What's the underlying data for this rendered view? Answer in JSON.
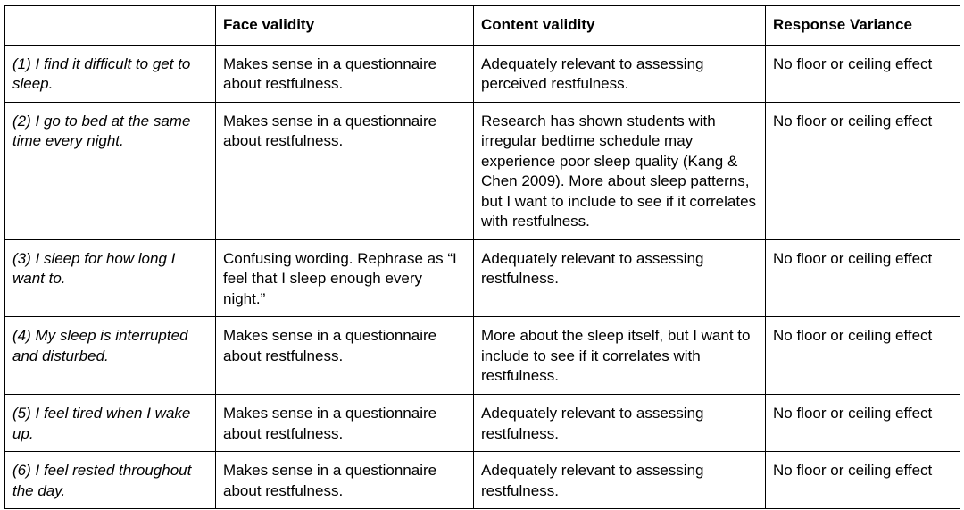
{
  "table": {
    "headers": [
      "",
      "Face validity",
      "Content validity",
      "Response Variance"
    ],
    "rows": [
      {
        "item": "(1) I find it difficult to get to sleep.",
        "face": "Makes sense in a questionnaire about restfulness.",
        "content": "Adequately relevant to assessing perceived restfulness.",
        "variance": "No floor or ceiling effect"
      },
      {
        "item": "(2) I go to bed at the same time every night.",
        "face": "Makes sense in a questionnaire about restfulness.",
        "content": "Research has shown students with irregular bedtime schedule may experience poor sleep quality (Kang & Chen 2009). More about sleep patterns, but I want to include to see if it correlates with restfulness.",
        "variance": "No floor or ceiling effect"
      },
      {
        "item": "(3) I sleep for how long I want to.",
        "face": "Confusing wording. Rephrase as “I feel that I sleep enough every night.”",
        "content": "Adequately relevant to assessing restfulness.",
        "variance": "No floor or ceiling effect"
      },
      {
        "item": "(4) My sleep is interrupted and disturbed.",
        "face": "Makes sense in a questionnaire about restfulness.",
        "content": "More about the sleep itself, but I want to include to see if it correlates with restfulness.",
        "variance": "No floor or ceiling effect"
      },
      {
        "item": "(5) I feel tired when I wake up.",
        "face": "Makes sense in a questionnaire about restfulness.",
        "content": "Adequately relevant to assessing restfulness.",
        "variance": "No floor or ceiling effect"
      },
      {
        "item": "(6) I feel rested throughout the day.",
        "face": "Makes sense in a questionnaire about restfulness.",
        "content": "Adequately relevant to assessing restfulness.",
        "variance": "No floor or ceiling effect"
      }
    ]
  }
}
